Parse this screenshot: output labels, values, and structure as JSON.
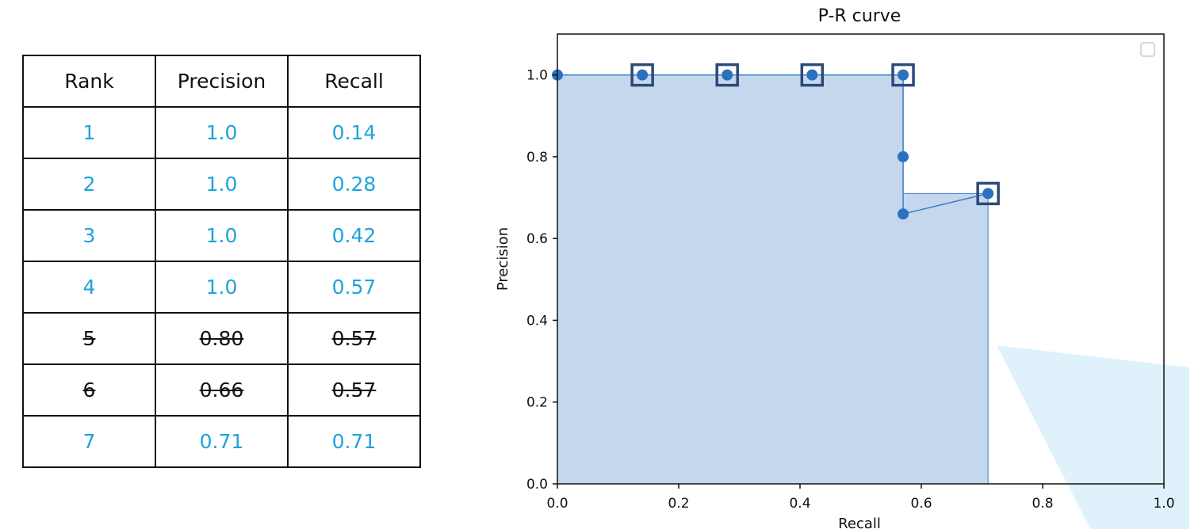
{
  "table": {
    "headers": [
      "Rank",
      "Precision",
      "Recall"
    ],
    "rows": [
      {
        "rank": "1",
        "precision": "1.0",
        "recall": "0.14",
        "struck": false
      },
      {
        "rank": "2",
        "precision": "1.0",
        "recall": "0.28",
        "struck": false
      },
      {
        "rank": "3",
        "precision": "1.0",
        "recall": "0.42",
        "struck": false
      },
      {
        "rank": "4",
        "precision": "1.0",
        "recall": "0.57",
        "struck": false
      },
      {
        "rank": "5",
        "precision": "0.80",
        "recall": "0.57",
        "struck": true
      },
      {
        "rank": "6",
        "precision": "0.66",
        "recall": "0.57",
        "struck": true
      },
      {
        "rank": "7",
        "precision": "0.71",
        "recall": "0.71",
        "struck": false
      }
    ],
    "kept_color": "#1fa3dc",
    "struck_color": "#111111"
  },
  "chart_data": {
    "type": "line",
    "title": "P-R curve",
    "xlabel": "Recall",
    "ylabel": "Precision",
    "xlim": [
      0.0,
      1.0
    ],
    "ylim": [
      0.0,
      1.1
    ],
    "xticks": [
      "0.0",
      "0.2",
      "0.4",
      "0.6",
      "0.8",
      "1.0"
    ],
    "yticks": [
      "0.0",
      "0.2",
      "0.4",
      "0.6",
      "0.8",
      "1.0"
    ],
    "grid": false,
    "legend": "top-right (empty)",
    "points": [
      {
        "x": 0.0,
        "y": 1.0
      },
      {
        "x": 0.14,
        "y": 1.0
      },
      {
        "x": 0.28,
        "y": 1.0
      },
      {
        "x": 0.42,
        "y": 1.0
      },
      {
        "x": 0.57,
        "y": 1.0
      },
      {
        "x": 0.57,
        "y": 0.8
      },
      {
        "x": 0.57,
        "y": 0.66
      },
      {
        "x": 0.71,
        "y": 0.71
      }
    ],
    "highlighted_points": [
      {
        "x": 0.14,
        "y": 1.0
      },
      {
        "x": 0.28,
        "y": 1.0
      },
      {
        "x": 0.42,
        "y": 1.0
      },
      {
        "x": 0.57,
        "y": 1.0
      },
      {
        "x": 0.71,
        "y": 0.71
      }
    ],
    "area": [
      {
        "x": 0.0,
        "y": 1.0
      },
      {
        "x": 0.57,
        "y": 1.0
      },
      {
        "x": 0.57,
        "y": 0.71
      },
      {
        "x": 0.71,
        "y": 0.71
      },
      {
        "x": 0.71,
        "y": 0.0
      },
      {
        "x": 0.0,
        "y": 0.0
      }
    ],
    "colors": {
      "line": "#3b7dc4",
      "marker": "#2a72bd",
      "highlight_box": "#2c4a78",
      "area": "#c5d7ec",
      "overlay": "#dff2fb"
    }
  }
}
